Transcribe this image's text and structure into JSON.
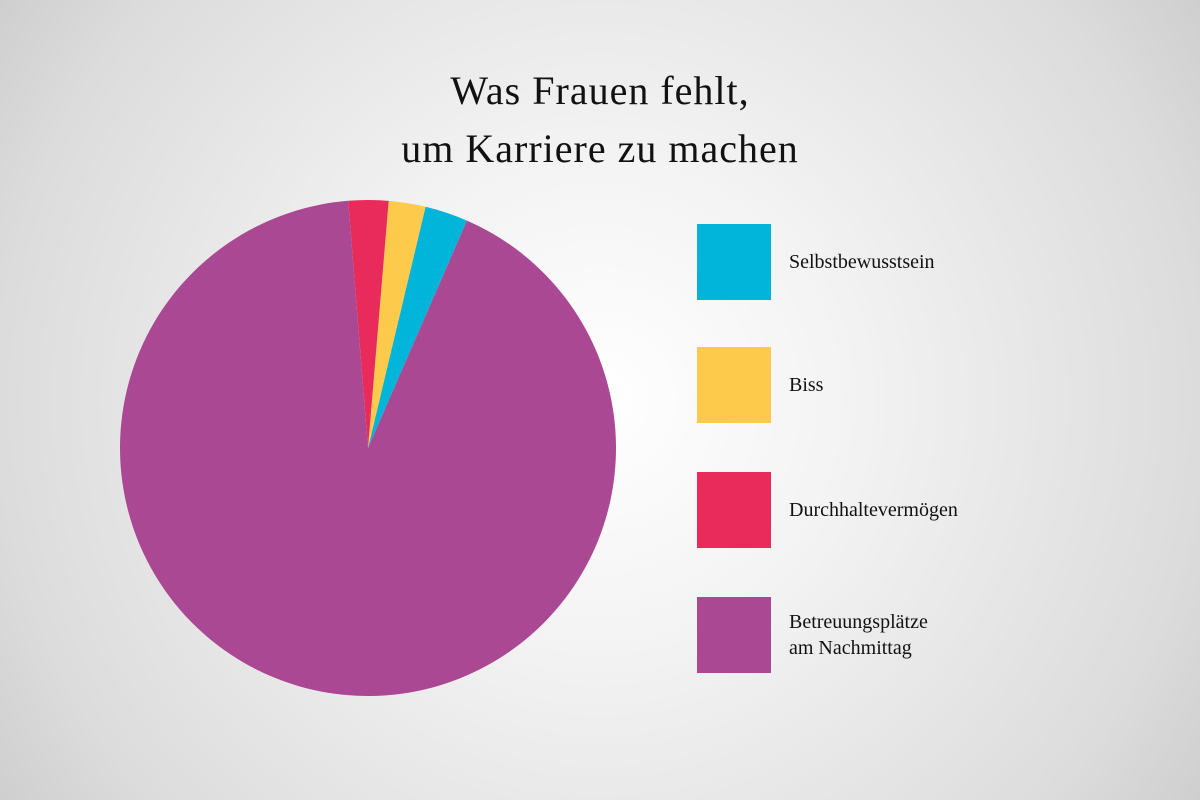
{
  "chart_data": {
    "type": "pie",
    "title": "Was Frauen fehlt,\num Karriere zu machen",
    "categories": [
      "Selbstbewusstsein",
      "Biss",
      "Durchhaltevermögen",
      "Betreuungsplätze\nam Nachmittag"
    ],
    "values": [
      2.8,
      2.4,
      2.6,
      92.2
    ],
    "colors": [
      "#00b5d9",
      "#fdca4b",
      "#e82b5b",
      "#aa4893"
    ],
    "legend": "right"
  }
}
